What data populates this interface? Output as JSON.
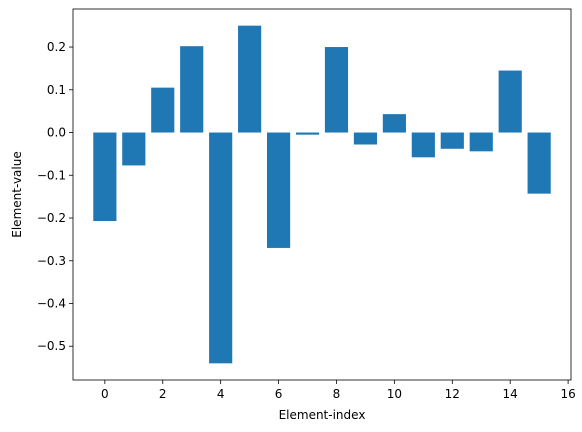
{
  "chart_data": {
    "type": "bar",
    "x": [
      0,
      1,
      2,
      3,
      4,
      5,
      6,
      7,
      8,
      9,
      10,
      11,
      12,
      13,
      14,
      15
    ],
    "values": [
      -0.207,
      -0.077,
      0.105,
      0.202,
      -0.54,
      0.25,
      -0.27,
      -0.005,
      0.2,
      -0.028,
      0.043,
      -0.058,
      -0.038,
      -0.044,
      0.145,
      -0.143
    ],
    "xlabel": "Element-index",
    "ylabel": "Element-value",
    "xlim": [
      -1.1,
      16.1
    ],
    "ylim": [
      -0.579,
      0.289
    ],
    "xticks": [
      0,
      2,
      4,
      6,
      8,
      10,
      12,
      14,
      16
    ],
    "yticks": [
      -0.5,
      -0.4,
      -0.3,
      -0.2,
      -0.1,
      0.0,
      0.1,
      0.2
    ],
    "ytick_labels": [
      "−0.5",
      "−0.4",
      "−0.3",
      "−0.2",
      "−0.1",
      "0.0",
      "0.1",
      "0.2"
    ],
    "bar_color": "#1f77b4",
    "grid": false
  }
}
